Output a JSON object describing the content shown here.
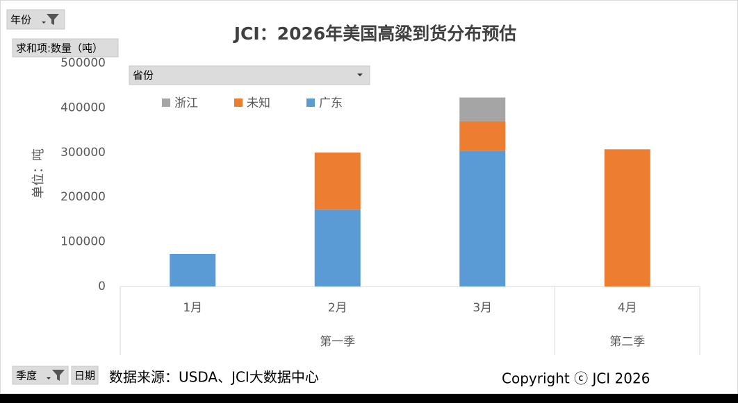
{
  "chart_data": {
    "type": "stacked_bar",
    "title": "JCI：2026年美国高粱到货分布预估",
    "y_label": "单位：吨",
    "categories": [
      "1月",
      "2月",
      "3月",
      "4月"
    ],
    "category_groups": [
      "第一季",
      "第一季",
      "第一季",
      "第二季"
    ],
    "series": [
      {
        "name": "浙江",
        "color": "#a5a5a5",
        "values": [
          null,
          null,
          53000,
          null
        ]
      },
      {
        "name": "未知",
        "color": "#ed7d31",
        "values": [
          null,
          128000,
          67000,
          307000
        ]
      },
      {
        "name": "广东",
        "color": "#5b9bd5",
        "values": [
          73000,
          172000,
          303000,
          null
        ]
      }
    ],
    "ylim": [
      0,
      500000
    ],
    "yticks": [
      0,
      100000,
      200000,
      300000,
      400000,
      500000
    ],
    "grid": false
  },
  "pivot_fields": {
    "filter": "年份",
    "value": "求和项:数量（吨）",
    "legend": "省份",
    "axis": [
      "季度",
      "日期"
    ]
  },
  "footer": {
    "source": "数据来源：USDA、JCI大数据中心",
    "copyright": "Copyright ⓒ JCI 2026"
  }
}
